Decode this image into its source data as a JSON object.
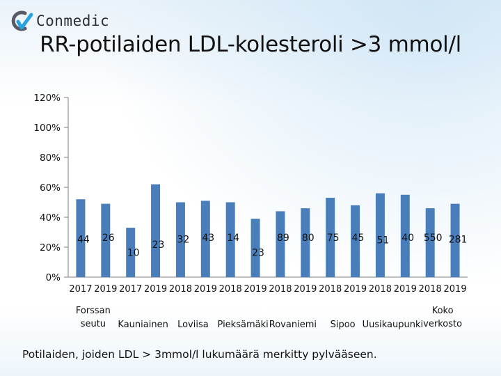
{
  "logo": {
    "text": "Conmedic"
  },
  "title": "RR-potilaiden LDL-kolesteroli >3 mmol/l",
  "footnote": "Potilaiden, joiden LDL > 3mmol/l lukumäärä merkitty pylvääseen.",
  "colors": {
    "bar": "#4a7ebb",
    "axis": "#7f7f7f",
    "text": "#111111"
  },
  "chart_data": {
    "type": "bar",
    "title": "RR-potilaiden LDL-kolesteroli >3 mmol/l",
    "ylim": [
      0,
      1.2
    ],
    "y_ticks": [
      {
        "v": 1.2,
        "label": "120%"
      },
      {
        "v": 1.0,
        "label": "100%"
      },
      {
        "v": 0.8,
        "label": "80%"
      },
      {
        "v": 0.6,
        "label": "60%"
      },
      {
        "v": 0.4,
        "label": "40%"
      },
      {
        "v": 0.2,
        "label": "20%"
      },
      {
        "v": 0.0,
        "label": "0%"
      }
    ],
    "grid": false,
    "legend": "none",
    "bars": [
      {
        "year": "2017",
        "value": 0.52,
        "count": "44"
      },
      {
        "year": "2019",
        "value": 0.49,
        "count": "26"
      },
      {
        "year": "2017",
        "value": 0.33,
        "count": "10"
      },
      {
        "year": "2019",
        "value": 0.62,
        "count": "23"
      },
      {
        "year": "2018",
        "value": 0.5,
        "count": "32"
      },
      {
        "year": "2019",
        "value": 0.51,
        "count": "43"
      },
      {
        "year": "2018",
        "value": 0.5,
        "count": "14"
      },
      {
        "year": "2019",
        "value": 0.39,
        "count": "23"
      },
      {
        "year": "2018",
        "value": 0.44,
        "count": "89"
      },
      {
        "year": "2019",
        "value": 0.46,
        "count": "80"
      },
      {
        "year": "2018",
        "value": 0.53,
        "count": "75"
      },
      {
        "year": "2019",
        "value": 0.48,
        "count": "45"
      },
      {
        "year": "2018",
        "value": 0.56,
        "count": "51"
      },
      {
        "year": "2019",
        "value": 0.55,
        "count": "40"
      },
      {
        "year": "2018",
        "value": 0.46,
        "count": "550"
      },
      {
        "year": "2019",
        "value": 0.49,
        "count": "281"
      }
    ],
    "groups": [
      {
        "lines": [
          "Forssan",
          "seutu"
        ]
      },
      {
        "lines": [
          "Kauniainen"
        ]
      },
      {
        "lines": [
          "Loviisa"
        ]
      },
      {
        "lines": [
          "Pieksämäki"
        ]
      },
      {
        "lines": [
          "Rovaniemi"
        ]
      },
      {
        "lines": [
          "Sipoo"
        ]
      },
      {
        "lines": [
          "Uusikaupunki"
        ]
      },
      {
        "lines": [
          "Koko",
          "verkosto"
        ]
      }
    ]
  }
}
